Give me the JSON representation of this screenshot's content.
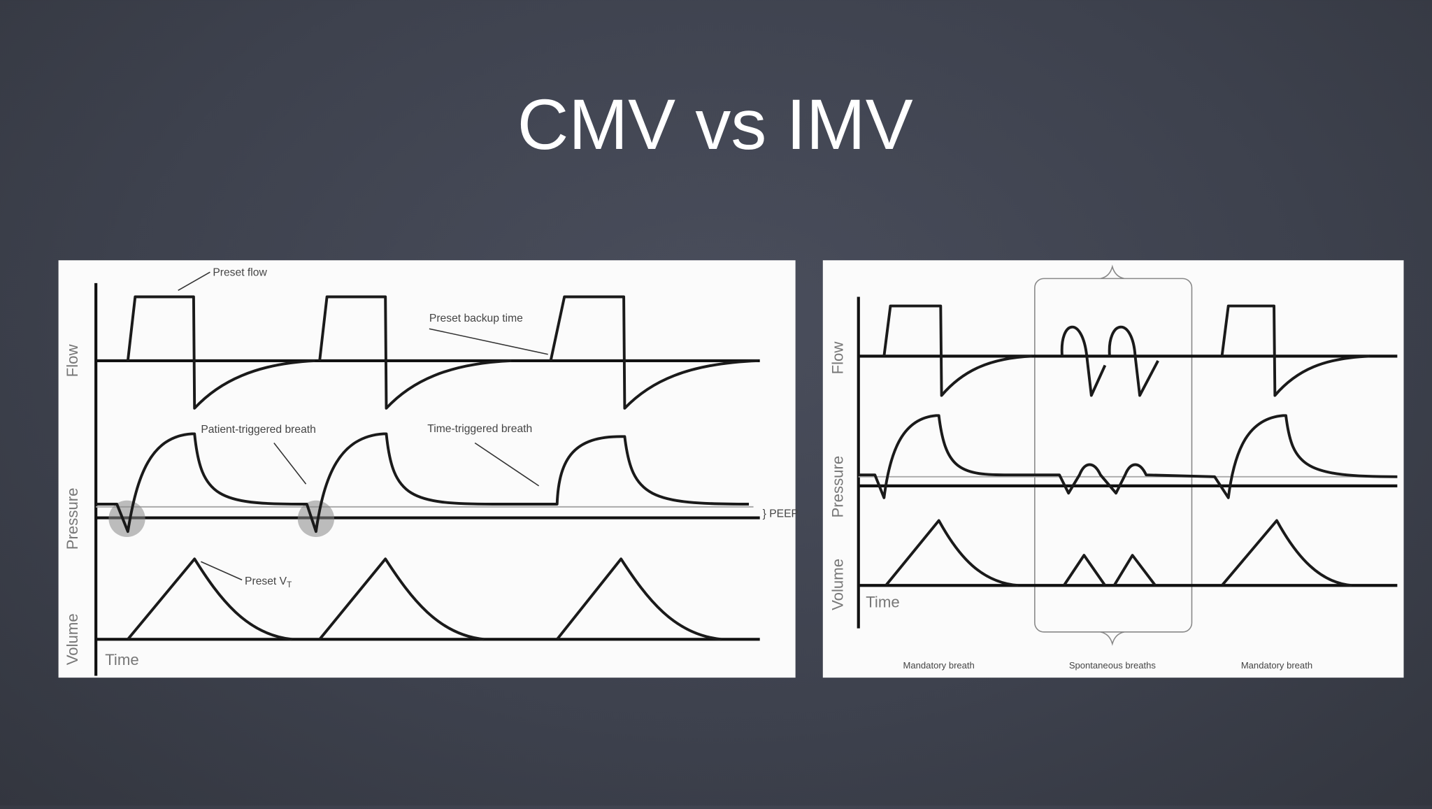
{
  "title": "CMV vs IMV",
  "left_diagram": {
    "axis_labels": {
      "flow": "Flow",
      "pressure": "Pressure",
      "volume": "Volume",
      "time": "Time"
    },
    "annotations": {
      "preset_flow": "Preset flow",
      "preset_backup_time": "Preset backup time",
      "patient_triggered": "Patient-triggered breath",
      "time_triggered": "Time-triggered breath",
      "preset_volume": "Preset V",
      "preset_volume_sub": "T",
      "peep": "} PEEP"
    }
  },
  "right_diagram": {
    "axis_labels": {
      "flow": "Flow",
      "pressure": "Pressure",
      "volume": "Volume",
      "time": "Time"
    },
    "breath_labels": [
      "Mandatory breath",
      "Spontaneous breaths",
      "Mandatory breath"
    ]
  }
}
